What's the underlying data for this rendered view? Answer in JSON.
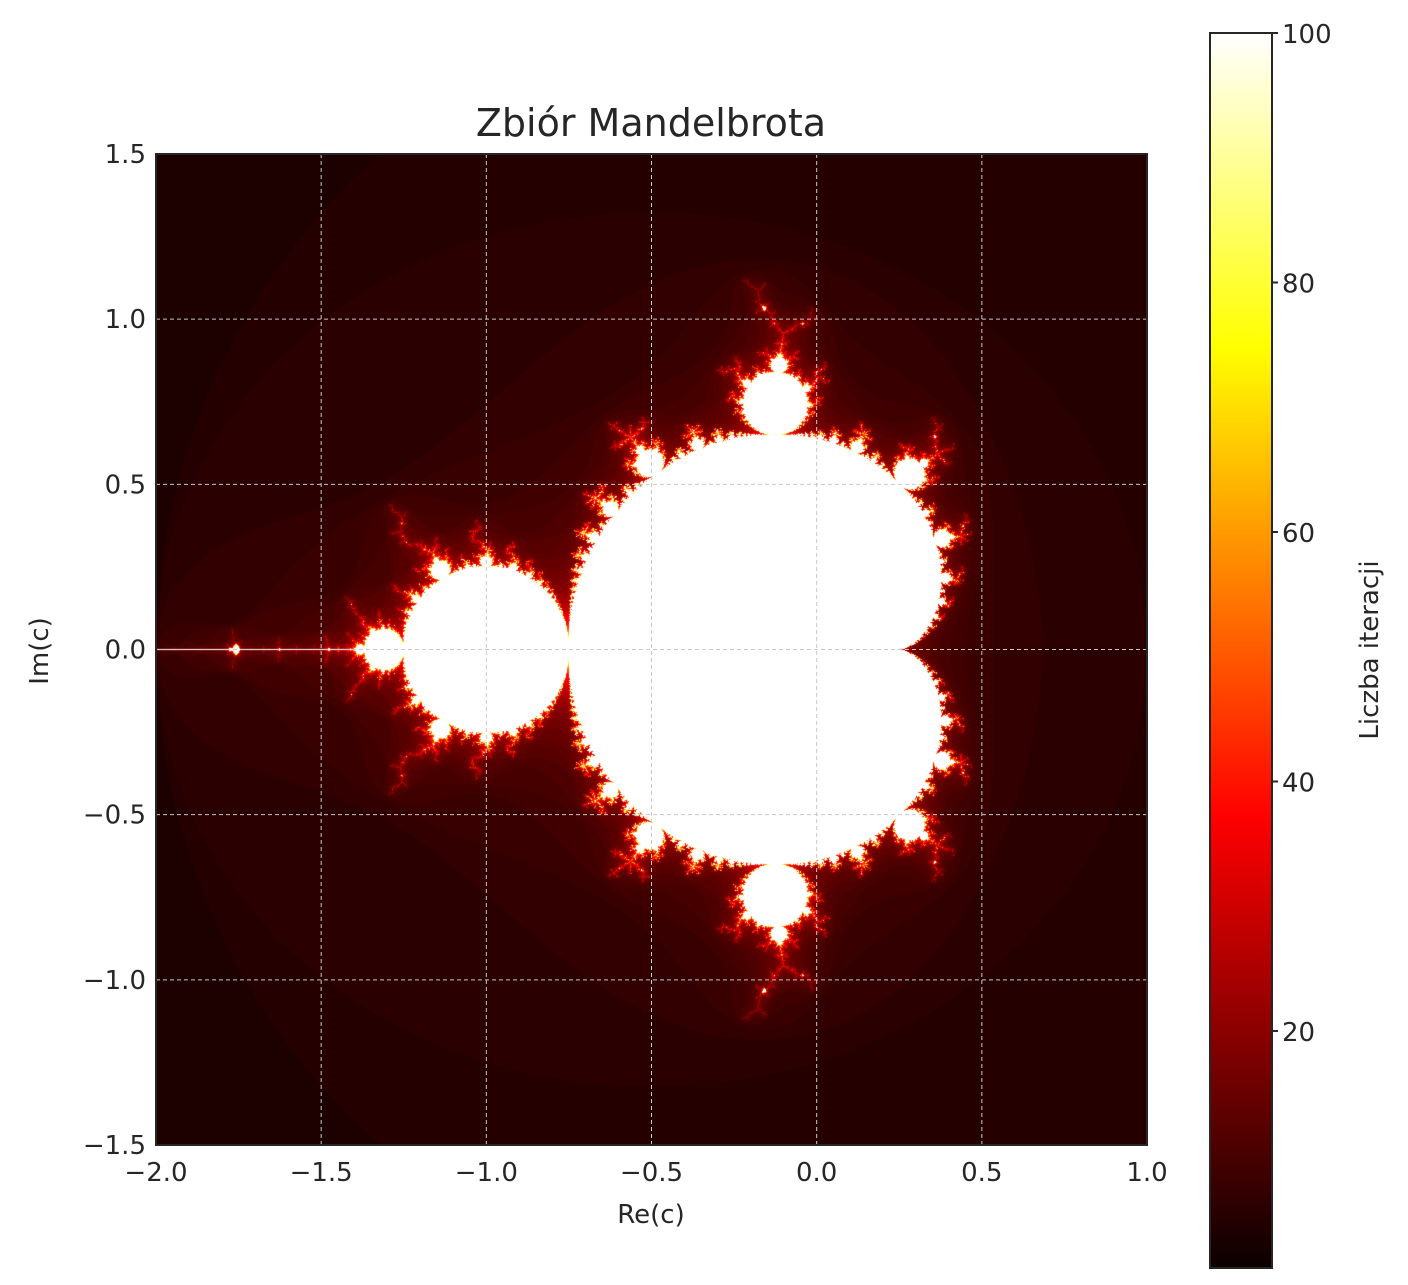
{
  "chart_data": {
    "type": "heatmap",
    "title": "Zbiór Mandelbrota",
    "xlabel": "Re(c)",
    "ylabel": "Im(c)",
    "xlim": [
      -2.0,
      1.0
    ],
    "ylim": [
      -1.5,
      1.5
    ],
    "x_ticks": [
      -2.0,
      -1.5,
      -1.0,
      -0.5,
      0.0,
      0.5,
      1.0
    ],
    "y_ticks": [
      -1.5,
      -1.0,
      -0.5,
      0.0,
      0.5,
      1.0,
      1.5
    ],
    "x_tick_labels": [
      "−2.0",
      "−1.5",
      "−1.0",
      "−0.5",
      "0.0",
      "0.5",
      "1.0"
    ],
    "y_tick_labels": [
      "−1.5",
      "−1.0",
      "−0.5",
      "0.0",
      "0.5",
      "1.0",
      "1.5"
    ],
    "grid": true,
    "colormap": "hot",
    "max_iterations": 100,
    "colorbar": {
      "label": "Liczba iteracji",
      "range": [
        1,
        100
      ],
      "ticks": [
        20,
        40,
        60,
        80,
        100
      ],
      "tick_labels": [
        "20",
        "40",
        "60",
        "80",
        "100"
      ]
    }
  }
}
